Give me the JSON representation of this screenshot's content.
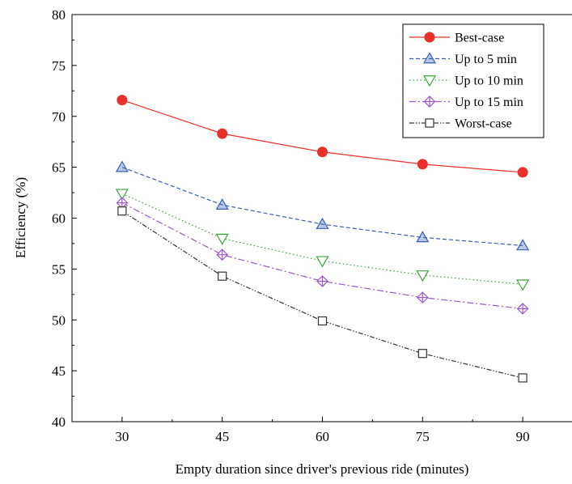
{
  "chart_data": {
    "type": "line",
    "xlabel": "Empty duration since driver's previous ride (minutes)",
    "ylabel": "Efficiency (%)",
    "x": [
      30,
      45,
      60,
      75,
      90
    ],
    "xlim": [
      22.5,
      97.5
    ],
    "ylim": [
      40,
      80
    ],
    "x_ticks": [
      30,
      45,
      60,
      75,
      90
    ],
    "y_ticks": [
      40,
      45,
      50,
      55,
      60,
      65,
      70,
      75,
      80
    ],
    "grid": false,
    "legend_position": "top-right",
    "series": [
      {
        "name": "Best-case",
        "values": [
          71.6,
          68.3,
          66.5,
          65.3,
          64.5
        ],
        "color": "#e8312b",
        "dash": "",
        "marker": "filled-circle"
      },
      {
        "name": "Up to 5 min",
        "values": [
          65.0,
          61.3,
          59.4,
          58.1,
          57.3
        ],
        "color": "#3a5fb4",
        "dash": "5,3",
        "marker": "triangle-up"
      },
      {
        "name": "Up to 10 min",
        "values": [
          62.4,
          58.0,
          55.8,
          54.4,
          53.5
        ],
        "color": "#3aa53a",
        "dash": "1.5,3",
        "marker": "triangle-down"
      },
      {
        "name": "Up to 15 min",
        "values": [
          61.5,
          56.4,
          53.8,
          52.2,
          51.1
        ],
        "color": "#9b59c6",
        "dash": "8,3,2,3",
        "marker": "diamond-cross"
      },
      {
        "name": "Worst-case",
        "values": [
          60.7,
          54.3,
          49.9,
          46.7,
          44.3
        ],
        "color": "#333333",
        "dash": "6,2,1.5,2,1.5,2",
        "marker": "open-square"
      }
    ]
  }
}
